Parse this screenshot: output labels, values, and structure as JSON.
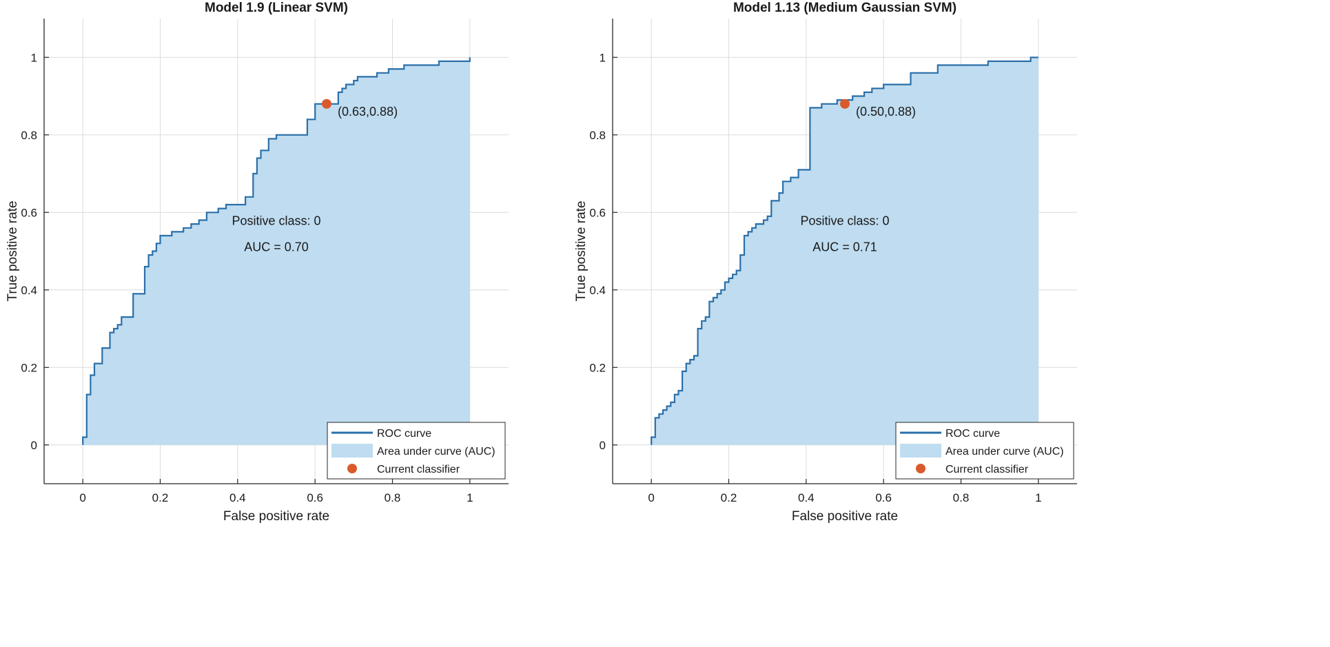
{
  "colors": {
    "curve": "#2a6fa8",
    "fill": "#bfdcf0",
    "marker": "#d95b2b",
    "grid": "#dcdcdc",
    "axis": "#262626",
    "text": "#1a1a1a"
  },
  "legend": {
    "roc_label": "ROC curve",
    "auc_label": "Area under curve (AUC)",
    "classifier_label": "Current classifier"
  },
  "chart_data": [
    {
      "type": "line",
      "title": "Model 1.9 (Linear SVM)",
      "xlabel": "False positive rate",
      "ylabel": "True positive rate",
      "xlim": [
        -0.1,
        1.1
      ],
      "ylim": [
        -0.1,
        1.1
      ],
      "xticks": [
        0,
        0.2,
        0.4,
        0.6,
        0.8,
        1
      ],
      "xtick_labels": [
        "0",
        "0.2",
        "0.4",
        "0.6",
        "0.8",
        "1"
      ],
      "yticks": [
        0,
        0.2,
        0.4,
        0.6,
        0.8,
        1
      ],
      "ytick_labels": [
        "0",
        "0.2",
        "0.4",
        "0.6",
        "0.8",
        "1"
      ],
      "grid": true,
      "legend_position": "bottom-right",
      "annotation": {
        "class_text": "Positive class: 0",
        "auc_text": "AUC = 0.70",
        "x": 0.5,
        "y": 0.55
      },
      "current_classifier": {
        "x": 0.63,
        "y": 0.88,
        "label": "(0.63,0.88)"
      },
      "roc": {
        "fpr": [
          0,
          0,
          0.01,
          0.01,
          0.02,
          0.02,
          0.03,
          0.03,
          0.05,
          0.05,
          0.07,
          0.07,
          0.08,
          0.08,
          0.09,
          0.09,
          0.1,
          0.1,
          0.11,
          0.11,
          0.13,
          0.13,
          0.16,
          0.16,
          0.17,
          0.17,
          0.18,
          0.18,
          0.19,
          0.19,
          0.2,
          0.2,
          0.21,
          0.21,
          0.23,
          0.23,
          0.26,
          0.26,
          0.28,
          0.28,
          0.3,
          0.3,
          0.32,
          0.32,
          0.35,
          0.35,
          0.37,
          0.37,
          0.42,
          0.42,
          0.44,
          0.44,
          0.45,
          0.45,
          0.46,
          0.46,
          0.48,
          0.48,
          0.5,
          0.5,
          0.53,
          0.53,
          0.58,
          0.58,
          0.6,
          0.6,
          0.63,
          0.63,
          0.66,
          0.66,
          0.67,
          0.67,
          0.68,
          0.68,
          0.7,
          0.7,
          0.71,
          0.71,
          0.73,
          0.73,
          0.76,
          0.76,
          0.79,
          0.79,
          0.83,
          0.83,
          0.89,
          0.89,
          0.92,
          0.92,
          0.97,
          0.97,
          1.0,
          1.0
        ],
        "tpr": [
          0,
          0.02,
          0.02,
          0.13,
          0.13,
          0.18,
          0.18,
          0.21,
          0.21,
          0.25,
          0.25,
          0.29,
          0.29,
          0.3,
          0.3,
          0.31,
          0.31,
          0.33,
          0.33,
          0.33,
          0.33,
          0.39,
          0.39,
          0.46,
          0.46,
          0.49,
          0.49,
          0.5,
          0.5,
          0.52,
          0.52,
          0.54,
          0.54,
          0.54,
          0.54,
          0.55,
          0.55,
          0.56,
          0.56,
          0.57,
          0.57,
          0.58,
          0.58,
          0.6,
          0.6,
          0.61,
          0.61,
          0.62,
          0.62,
          0.64,
          0.64,
          0.7,
          0.7,
          0.74,
          0.74,
          0.76,
          0.76,
          0.79,
          0.79,
          0.8,
          0.8,
          0.8,
          0.8,
          0.84,
          0.84,
          0.88,
          0.88,
          0.88,
          0.88,
          0.91,
          0.91,
          0.92,
          0.92,
          0.93,
          0.93,
          0.94,
          0.94,
          0.95,
          0.95,
          0.95,
          0.95,
          0.96,
          0.96,
          0.97,
          0.97,
          0.98,
          0.98,
          0.98,
          0.98,
          0.99,
          0.99,
          0.99,
          0.99,
          1.0
        ]
      }
    },
    {
      "type": "line",
      "title": "Model 1.13 (Medium Gaussian SVM)",
      "xlabel": "False positive rate",
      "ylabel": "True positive rate",
      "xlim": [
        -0.1,
        1.1
      ],
      "ylim": [
        -0.1,
        1.1
      ],
      "xticks": [
        0,
        0.2,
        0.4,
        0.6,
        0.8,
        1
      ],
      "xtick_labels": [
        "0",
        "0.2",
        "0.4",
        "0.6",
        "0.8",
        "1"
      ],
      "yticks": [
        0,
        0.2,
        0.4,
        0.6,
        0.8,
        1
      ],
      "ytick_labels": [
        "0",
        "0.2",
        "0.4",
        "0.6",
        "0.8",
        "1"
      ],
      "grid": true,
      "legend_position": "bottom-right",
      "annotation": {
        "class_text": "Positive class: 0",
        "auc_text": "AUC = 0.71",
        "x": 0.5,
        "y": 0.55
      },
      "current_classifier": {
        "x": 0.5,
        "y": 0.88,
        "label": "(0.50,0.88)"
      },
      "roc": {
        "fpr": [
          0,
          0,
          0.01,
          0.01,
          0.02,
          0.02,
          0.03,
          0.03,
          0.04,
          0.04,
          0.05,
          0.05,
          0.06,
          0.06,
          0.07,
          0.07,
          0.08,
          0.08,
          0.09,
          0.09,
          0.1,
          0.1,
          0.11,
          0.11,
          0.12,
          0.12,
          0.13,
          0.13,
          0.14,
          0.14,
          0.15,
          0.15,
          0.16,
          0.16,
          0.17,
          0.17,
          0.18,
          0.18,
          0.19,
          0.19,
          0.2,
          0.2,
          0.21,
          0.21,
          0.22,
          0.22,
          0.23,
          0.23,
          0.24,
          0.24,
          0.25,
          0.25,
          0.26,
          0.26,
          0.27,
          0.27,
          0.29,
          0.29,
          0.3,
          0.3,
          0.31,
          0.31,
          0.33,
          0.33,
          0.34,
          0.34,
          0.36,
          0.36,
          0.37,
          0.37,
          0.38,
          0.38,
          0.41,
          0.41,
          0.44,
          0.44,
          0.48,
          0.48,
          0.52,
          0.52,
          0.55,
          0.55,
          0.57,
          0.57,
          0.6,
          0.6,
          0.67,
          0.67,
          0.7,
          0.7,
          0.74,
          0.74,
          0.76,
          0.76,
          0.87,
          0.87,
          0.92,
          0.92,
          0.98,
          0.98,
          1.0
        ],
        "tpr": [
          0,
          0.02,
          0.02,
          0.07,
          0.07,
          0.08,
          0.08,
          0.09,
          0.09,
          0.1,
          0.1,
          0.11,
          0.11,
          0.13,
          0.13,
          0.14,
          0.14,
          0.19,
          0.19,
          0.21,
          0.21,
          0.22,
          0.22,
          0.23,
          0.23,
          0.3,
          0.3,
          0.32,
          0.32,
          0.33,
          0.33,
          0.37,
          0.37,
          0.38,
          0.38,
          0.39,
          0.39,
          0.4,
          0.4,
          0.42,
          0.42,
          0.43,
          0.43,
          0.44,
          0.44,
          0.45,
          0.45,
          0.49,
          0.49,
          0.54,
          0.54,
          0.55,
          0.55,
          0.56,
          0.56,
          0.57,
          0.57,
          0.58,
          0.58,
          0.59,
          0.59,
          0.63,
          0.63,
          0.65,
          0.65,
          0.68,
          0.68,
          0.69,
          0.69,
          0.69,
          0.69,
          0.71,
          0.71,
          0.87,
          0.87,
          0.88,
          0.88,
          0.89,
          0.89,
          0.9,
          0.9,
          0.91,
          0.91,
          0.92,
          0.92,
          0.93,
          0.93,
          0.96,
          0.96,
          0.96,
          0.96,
          0.98,
          0.98,
          0.98,
          0.98,
          0.99,
          0.99,
          0.99,
          0.99,
          1.0,
          1.0
        ]
      }
    }
  ]
}
